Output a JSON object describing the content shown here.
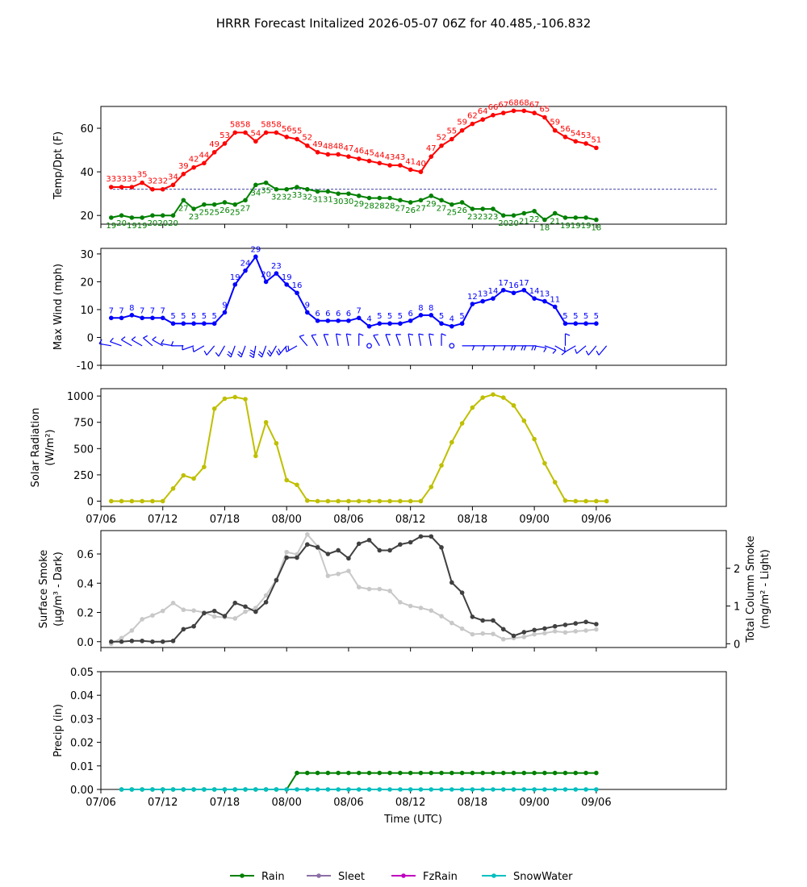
{
  "title": "HRRR Forecast Initalized 2026-05-07 06Z for 40.485,-106.832",
  "x_tick_labels": [
    "07/06",
    "07/12",
    "07/18",
    "08/00",
    "08/06",
    "08/12",
    "08/18",
    "09/00",
    "09/06"
  ],
  "x_axis_label": "Time (UTC)",
  "legend": [
    {
      "name": "Rain",
      "color": "#008000"
    },
    {
      "name": "Sleet",
      "color": "#8c6fa5"
    },
    {
      "name": "FzRain",
      "color": "#c000c0"
    },
    {
      "name": "SnowWater",
      "color": "#00bfbf"
    }
  ],
  "chart_data": [
    {
      "type": "line",
      "ylabel": "Temp/Dpt (F)",
      "ylim": [
        16,
        70
      ],
      "yticks": [
        20,
        40,
        60
      ],
      "x_start_hour": 7,
      "freezing_line": 32,
      "series": [
        {
          "color": "#ff0000",
          "values": [
            33,
            33,
            33,
            35,
            32,
            32,
            34,
            39,
            42,
            44,
            49,
            53,
            58,
            58,
            54,
            58,
            58,
            56,
            55,
            52,
            49,
            48,
            48,
            47,
            46,
            45,
            44,
            43,
            43,
            41,
            40,
            47,
            52,
            55,
            59,
            62,
            64,
            66,
            67,
            68,
            68,
            67,
            65,
            59,
            56,
            54,
            53,
            51
          ]
        },
        {
          "color": "#008000",
          "values": [
            19,
            20,
            19,
            19,
            20,
            20,
            20,
            27,
            23,
            25,
            25,
            26,
            25,
            27,
            34,
            35,
            32,
            32,
            33,
            32,
            31,
            31,
            30,
            30,
            29,
            28,
            28,
            28,
            27,
            26,
            27,
            29,
            27,
            25,
            26,
            23,
            23,
            23,
            20,
            20,
            21,
            22,
            18,
            21,
            19,
            19,
            19,
            18
          ]
        }
      ]
    },
    {
      "type": "line",
      "ylabel": "Max Wind (mph)",
      "ylim": [
        -10,
        32
      ],
      "yticks": [
        -10,
        0,
        10,
        20,
        30
      ],
      "x_start_hour": 7,
      "series": [
        {
          "color": "#0000ff",
          "values": [
            7,
            7,
            8,
            7,
            7,
            7,
            5,
            5,
            5,
            5,
            5,
            9,
            19,
            24,
            29,
            20,
            23,
            19,
            16,
            9,
            6,
            6,
            6,
            6,
            7,
            4,
            5,
            5,
            5,
            6,
            8,
            8,
            5,
            4,
            5,
            12,
            13,
            14,
            17,
            16,
            17,
            14,
            13,
            11,
            5,
            5,
            5,
            5
          ]
        }
      ],
      "wind_dir_deg": [
        280,
        290,
        300,
        300,
        310,
        300,
        280,
        270,
        250,
        240,
        220,
        210,
        200,
        200,
        190,
        200,
        210,
        220,
        240,
        320,
        330,
        340,
        350,
        350,
        0,
        320,
        330,
        340,
        340,
        350,
        350,
        350,
        0,
        0,
        90,
        90,
        90,
        90,
        90,
        90,
        90,
        100,
        110,
        120,
        0,
        240,
        230,
        220,
        220
      ]
    },
    {
      "type": "line",
      "ylabel": "Solar Radiation (W/m²)",
      "ylim": [
        -50,
        1070
      ],
      "yticks": [
        0,
        250,
        500,
        750,
        1000
      ],
      "x_start_hour": 7,
      "series": [
        {
          "color": "#bfbf00",
          "values": [
            0,
            0,
            0,
            0,
            0,
            0,
            120,
            245,
            215,
            325,
            880,
            975,
            990,
            970,
            430,
            750,
            550,
            200,
            155,
            5,
            0,
            0,
            0,
            0,
            0,
            0,
            0,
            0,
            0,
            0,
            0,
            135,
            340,
            560,
            740,
            890,
            985,
            1015,
            985,
            910,
            765,
            590,
            360,
            180,
            5,
            0,
            0,
            0,
            0
          ]
        }
      ]
    },
    {
      "type": "line",
      "ylabel": "Surface Smoke (μg/m³ - Dark)",
      "ylabel2": "Total Column Smoke (mg/m² - Light)",
      "ylim": [
        -0.04,
        0.76
      ],
      "yticks": [
        0.0,
        0.2,
        0.4,
        0.6
      ],
      "y2lim": [
        -0.1,
        3.0
      ],
      "y2ticks": [
        0,
        1,
        2
      ],
      "x_start_hour": 7,
      "series": [
        {
          "color": "#404040",
          "axis": "left",
          "values": [
            0.0,
            0.0,
            0.005,
            0.005,
            0.0,
            0.0,
            0.005,
            0.085,
            0.105,
            0.195,
            0.21,
            0.175,
            0.265,
            0.24,
            0.205,
            0.27,
            0.42,
            0.575,
            0.575,
            0.665,
            0.645,
            0.6,
            0.625,
            0.57,
            0.67,
            0.695,
            0.625,
            0.625,
            0.665,
            0.68,
            0.72,
            0.72,
            0.645,
            0.405,
            0.335,
            0.17,
            0.145,
            0.145,
            0.085,
            0.04,
            0.065,
            0.08,
            0.09,
            0.105,
            0.115,
            0.125,
            0.135,
            0.12
          ]
        },
        {
          "color": "#c8c8c8",
          "axis": "right",
          "values": [
            0.0,
            0.15,
            0.35,
            0.65,
            0.75,
            0.87,
            1.08,
            0.9,
            0.88,
            0.83,
            0.72,
            0.7,
            0.67,
            0.85,
            0.95,
            1.28,
            1.7,
            2.43,
            2.37,
            2.9,
            2.58,
            1.8,
            1.85,
            1.93,
            1.5,
            1.45,
            1.45,
            1.4,
            1.1,
            1.0,
            0.95,
            0.88,
            0.73,
            0.55,
            0.4,
            0.25,
            0.27,
            0.26,
            0.12,
            0.15,
            0.18,
            0.25,
            0.28,
            0.33,
            0.3,
            0.33,
            0.35,
            0.38
          ]
        }
      ]
    },
    {
      "type": "line",
      "ylabel": "Precip (in)",
      "ylim": [
        0,
        0.05
      ],
      "yticks": [
        0.0,
        0.01,
        0.02,
        0.03,
        0.04,
        0.05
      ],
      "x_start_hour": 8,
      "series": [
        {
          "name": "Rain",
          "color": "#008000",
          "values": [
            0,
            0,
            0,
            0,
            0,
            0,
            0,
            0,
            0,
            0,
            0,
            0,
            0,
            0,
            0,
            0,
            0,
            0.007,
            0.007,
            0.007,
            0.007,
            0.007,
            0.007,
            0.007,
            0.007,
            0.007,
            0.007,
            0.007,
            0.007,
            0.007,
            0.007,
            0.007,
            0.007,
            0.007,
            0.007,
            0.007,
            0.007,
            0.007,
            0.007,
            0.007,
            0.007,
            0.007,
            0.007,
            0.007,
            0.007,
            0.007,
            0.007
          ]
        },
        {
          "name": "SnowWater",
          "color": "#00bfbf",
          "values": [
            0,
            0,
            0,
            0,
            0,
            0,
            0,
            0,
            0,
            0,
            0,
            0,
            0,
            0,
            0,
            0,
            0,
            0,
            0,
            0,
            0,
            0,
            0,
            0,
            0,
            0,
            0,
            0,
            0,
            0,
            0,
            0,
            0,
            0,
            0,
            0,
            0,
            0,
            0,
            0,
            0,
            0,
            0,
            0,
            0,
            0,
            0
          ]
        }
      ]
    }
  ]
}
